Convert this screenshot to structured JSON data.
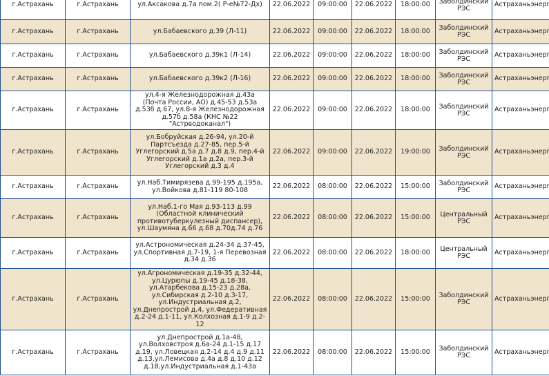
{
  "rows": [
    {
      "city": "г.Астрахань",
      "district": "г.Астрахань",
      "address": "ул.Аксакова д.7а пом.2( Р-е№72-Дх)",
      "start_date": "22.06.2022",
      "start_time": "09:00:00",
      "end_date": "22.06.2022",
      "end_time": "18:00:00",
      "res": "Заболдинский РЭС",
      "org": "Астраханьэнерго"
    },
    {
      "city": "г.Астрахань",
      "district": "г.Астрахань",
      "address": "ул.Бабаевского д.39 (Л-11)",
      "start_date": "22.06.2022",
      "start_time": "09:00:00",
      "end_date": "22.06.2022",
      "end_time": "18:00:00",
      "res": "Заболдинский РЭС",
      "org": "Астраханьэнерго"
    },
    {
      "city": "г.Астрахань",
      "district": "г.Астрахань",
      "address": "ул.Бабаевского д.39к1 (Л-14)",
      "start_date": "22.06.2022",
      "start_time": "09:00:00",
      "end_date": "22.06.2022",
      "end_time": "18:00:00",
      "res": "Заболдинский РЭС",
      "org": "Астраханьэнерго"
    },
    {
      "city": "г.Астрахань",
      "district": "г.Астрахань",
      "address": "ул.Бабаевского д.39к2 (Л-16)",
      "start_date": "22.06.2022",
      "start_time": "09:00:00",
      "end_date": "22.06.2022",
      "end_time": "18:00:00",
      "res": "Заболдинский РЭС",
      "org": "Астраханьэнерго"
    },
    {
      "city": "г.Астрахань",
      "district": "г.Астрахань",
      "address": "ул.4-я Железнодорожная д.43а (Почта России, АО) д.45-53 д.53а д.53б д.67, ул.8-я Железнодорожная д.57б д.58а (КНС №22 \"Астрводоканал\")",
      "start_date": "22.06.2022",
      "start_time": "09:00:00",
      "end_date": "22.06.2022",
      "end_time": "18:00:00",
      "res": "Заболдинский РЭС",
      "org": "Астраханьэнерго"
    },
    {
      "city": "г.Астрахань",
      "district": "г.Астрахань",
      "address": "ул.Бобруйская д.26-94, ул.20-й Партсъезда д.27-85, пер.5-й Углегорский д.5а д.7 д.8 д.9, пер.4-й Углегорский д.1а д.2а, пер.3-й Углегорский д.3 д.4",
      "start_date": "22.06.2022",
      "start_time": "09:00:00",
      "end_date": "22.06.2022",
      "end_time": "19:00:00",
      "res": "Заболдинский РЭС",
      "org": "Астраханьэнерго"
    },
    {
      "city": "г.Астрахань",
      "district": "г.Астрахань",
      "address": "ул.Наб.Тимирязева д.99-195 д.195а, ул.Войкова д.81-119 80-108",
      "start_date": "22.06.2022",
      "start_time": "08:00:00",
      "end_date": "22.06.2022",
      "end_time": "15:00:00",
      "res": "Заболдинский РЭС",
      "org": "Астраханьэнерго"
    },
    {
      "city": "г.Астрахань",
      "district": "г.Астрахань",
      "address": "ул.Наб.1-го Мая д.93-113 д.99 (Областной клинический противотуберкулезный диспансер), ул.Шаумяна д.66 д.68 д.70д.74 д.76",
      "start_date": "22.06.2022",
      "start_time": "08:00:00",
      "end_date": "22.06.2022",
      "end_time": "15:00:00",
      "res": "Центральный РЭС",
      "org": "Астраханьэнерго"
    },
    {
      "city": "г.Астрахань",
      "district": "г.Астрахань",
      "address": "ул.Астрономическая д.24-34 д.37-45, ул.Спортивная д.7-19, 1-я Перевозная д.34 д.36",
      "start_date": "22.06.2022",
      "start_time": "08:00:00",
      "end_date": "22.06.2022",
      "end_time": "18:00:00",
      "res": "Центральный РЭС",
      "org": "Астраханьэнерго"
    },
    {
      "city": "г.Астрахань",
      "district": "г.Астрахань",
      "address": "ул.Агрономическая д.19-35 д.32-44, ул.Цурюпы д.19-45 д.18-38, ул.Атарбекова д.15-23 д.28а, ул.Сибирская д.2-10 д.3-17, ул.Индустриальная д.2, ул.Днепрострой д.4, ул.Федеративная д.2-24 д.1-11, ул.Колхозная д.1-9 д.2-12",
      "start_date": "22.06.2022",
      "start_time": "08:00:00",
      "end_date": "22.06.2022",
      "end_time": "15:00:00",
      "res": "Заболдинский РЭС",
      "org": "Астраханьэнерго"
    },
    {
      "city": "г.Астрахань",
      "district": "г.Астрахань",
      "address": "ул.Днепрострой д.1а-48, ул.Волховстроя д.6а-24 д.1-15 д.17 д.19, ул.Ловецкая д.2-14 д.4 д.9 д.11 д.13,ул.Лемисова д.4а д.8 д.10 д.12 д.18,ул.Индустриальная д.1-43а",
      "start_date": "22.06.2022",
      "start_time": "08:00:00",
      "end_date": "22.06.2022",
      "end_time": "15:00:00",
      "res": "Заболдинский РЭС",
      "org": "Астраханьэнерго"
    }
  ]
}
